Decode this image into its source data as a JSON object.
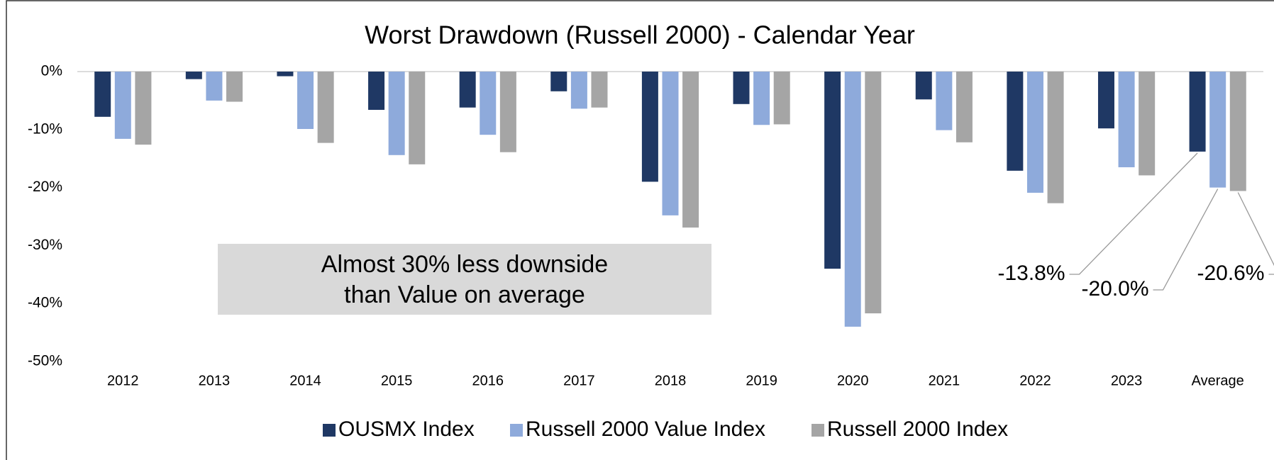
{
  "chart_data": {
    "type": "bar",
    "title": "Worst Drawdown (Russell 2000) - Calendar Year",
    "categories": [
      "2012",
      "2013",
      "2014",
      "2015",
      "2016",
      "2017",
      "2018",
      "2019",
      "2020",
      "2021",
      "2022",
      "2023",
      "Average"
    ],
    "series": [
      {
        "name": "OUSMX Index",
        "color": "#1f3864",
        "values": [
          -7.8,
          -1.3,
          -0.8,
          -6.6,
          -6.2,
          -3.4,
          -19.0,
          -5.6,
          -34.0,
          -4.8,
          -17.1,
          -9.8,
          -13.8
        ],
        "value_labels": [
          null,
          null,
          null,
          null,
          null,
          null,
          null,
          null,
          null,
          null,
          null,
          null,
          "-13.8%"
        ]
      },
      {
        "name": "Russell 2000 Value Index",
        "color": "#8eaadb",
        "values": [
          -11.6,
          -5.0,
          -9.9,
          -14.4,
          -10.9,
          -6.4,
          -24.8,
          -9.2,
          -44.0,
          -10.1,
          -20.9,
          -16.5,
          -20.0
        ],
        "value_labels": [
          null,
          null,
          null,
          null,
          null,
          null,
          null,
          null,
          null,
          null,
          null,
          null,
          "-20.0%"
        ]
      },
      {
        "name": "Russell 2000 Index",
        "color": "#a5a5a5",
        "values": [
          -12.6,
          -5.2,
          -12.3,
          -16.0,
          -13.9,
          -6.2,
          -26.9,
          -9.1,
          -41.7,
          -12.2,
          -22.7,
          -17.9,
          -20.6
        ],
        "value_labels": [
          null,
          null,
          null,
          null,
          null,
          null,
          null,
          null,
          null,
          null,
          null,
          null,
          "-20.6%"
        ]
      }
    ],
    "ylim": [
      -50,
      0
    ],
    "yticks": [
      {
        "value": 0,
        "label": "0%"
      },
      {
        "value": -10,
        "label": "-10%"
      },
      {
        "value": -20,
        "label": "-20%"
      },
      {
        "value": -30,
        "label": "-30%"
      },
      {
        "value": -40,
        "label": "-40%"
      },
      {
        "value": -50,
        "label": "-50%"
      }
    ],
    "annotation": [
      "Almost 30% less downside",
      "than Value on average"
    ],
    "legend": "bottom"
  }
}
